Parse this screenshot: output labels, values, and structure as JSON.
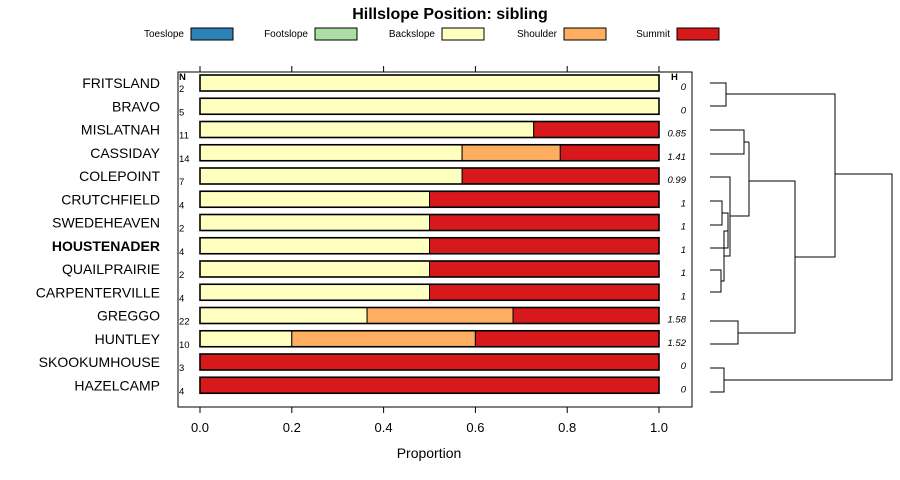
{
  "chart_data": {
    "type": "bar",
    "orientation": "horizontal",
    "stacked": true,
    "title": "Hillslope Position: sibling",
    "xlabel": "Proportion",
    "xlim": [
      0,
      1
    ],
    "xticks": [
      "0.0",
      "0.2",
      "0.4",
      "0.6",
      "0.8",
      "1.0"
    ],
    "legend_position": "top",
    "n_header": "N",
    "h_header": "H",
    "categories": [
      "FRITSLAND",
      "BRAVO",
      "MISLATNAH",
      "CASSIDAY",
      "COLEPOINT",
      "CRUTCHFIELD",
      "SWEDEHEAVEN",
      "HOUSTENADER",
      "QUAILPRAIRIE",
      "CARPENTERVILLE",
      "GREGGO",
      "HUNTLEY",
      "SKOOKUMHOUSE",
      "HAZELCAMP"
    ],
    "bold_category": "HOUSTENADER",
    "n": [
      "2",
      "5",
      "11",
      "14",
      "7",
      "4",
      "2",
      "4",
      "2",
      "4",
      "22",
      "10",
      "3",
      "4"
    ],
    "h": [
      "0",
      "0",
      "0.85",
      "1.41",
      "0.99",
      "1",
      "1",
      "1",
      "1",
      "1",
      "1.58",
      "1.52",
      "0",
      "0"
    ],
    "series": [
      {
        "name": "Toeslope",
        "color": "#2b83ba",
        "values": [
          0,
          0,
          0,
          0,
          0,
          0,
          0,
          0,
          0,
          0,
          0,
          0,
          0,
          0
        ]
      },
      {
        "name": "Footslope",
        "color": "#abdda4",
        "values": [
          0,
          0,
          0,
          0,
          0,
          0,
          0,
          0,
          0,
          0,
          0,
          0,
          0,
          0
        ]
      },
      {
        "name": "Backslope",
        "color": "#ffffbf",
        "values": [
          1,
          1,
          0.727,
          0.571,
          0.571,
          0.5,
          0.5,
          0.5,
          0.5,
          0.5,
          0.364,
          0.2,
          0,
          0
        ]
      },
      {
        "name": "Shoulder",
        "color": "#fdae61",
        "values": [
          0,
          0,
          0,
          0.214,
          0,
          0,
          0,
          0,
          0,
          0,
          0.318,
          0.4,
          0,
          0
        ]
      },
      {
        "name": "Summit",
        "color": "#d7191c",
        "values": [
          0,
          0,
          0.273,
          0.215,
          0.429,
          0.5,
          0.5,
          0.5,
          0.5,
          0.5,
          0.318,
          0.4,
          1,
          1
        ]
      }
    ],
    "grid": false
  }
}
